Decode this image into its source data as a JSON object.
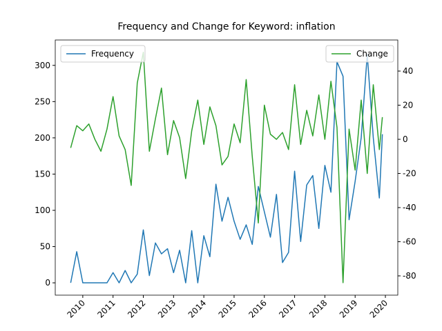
{
  "chart_data": {
    "type": "line",
    "title": "Frequency and Change for Keyword: inflation",
    "x": [
      2009.6,
      2009.8,
      2010.0,
      2010.2,
      2010.4,
      2010.6,
      2010.8,
      2011.0,
      2011.2,
      2011.4,
      2011.6,
      2011.8,
      2012.0,
      2012.2,
      2012.4,
      2012.6,
      2012.8,
      2013.0,
      2013.2,
      2013.4,
      2013.6,
      2013.8,
      2014.0,
      2014.2,
      2014.4,
      2014.6,
      2014.8,
      2015.0,
      2015.2,
      2015.4,
      2015.6,
      2015.8,
      2016.0,
      2016.2,
      2016.4,
      2016.6,
      2016.8,
      2017.0,
      2017.2,
      2017.4,
      2017.6,
      2017.8,
      2018.0,
      2018.2,
      2018.4,
      2018.6,
      2018.8,
      2019.0,
      2019.2,
      2019.4,
      2019.6,
      2019.8,
      2019.9
    ],
    "series": [
      {
        "name": "Frequency",
        "color": "#1f77b4",
        "values": [
          0,
          43,
          0,
          0,
          0,
          0,
          0,
          14,
          0,
          17,
          0,
          12,
          73,
          10,
          55,
          40,
          47,
          14,
          45,
          0,
          72,
          0,
          65,
          36,
          136,
          85,
          118,
          85,
          60,
          80,
          53,
          133,
          98,
          63,
          122,
          28,
          42,
          154,
          57,
          135,
          148,
          75,
          162,
          125,
          305,
          285,
          87,
          140,
          200,
          315,
          200,
          117,
          205
        ]
      },
      {
        "name": "Change",
        "color": "#2ca02c",
        "axis": "y2",
        "values": [
          -5,
          8,
          5,
          9,
          0,
          -7,
          6,
          25,
          2,
          -6,
          -27,
          33,
          51,
          -7,
          12,
          30,
          -9,
          11,
          1,
          -23,
          5,
          23,
          -3,
          19,
          8,
          -15,
          -10,
          9,
          -2,
          35,
          -10,
          -49,
          20,
          3,
          0,
          4,
          -6,
          32,
          -3,
          17,
          2,
          26,
          0,
          34,
          7,
          -84,
          6,
          -18,
          23,
          -20,
          32,
          -6,
          13
        ]
      }
    ],
    "xlim": [
      2009.09,
      2020.41
    ],
    "xticks": [
      2010,
      2011,
      2012,
      2013,
      2014,
      2015,
      2016,
      2017,
      2018,
      2019,
      2020
    ],
    "ylim": [
      -17,
      335
    ],
    "yticks": [
      0,
      50,
      100,
      150,
      200,
      250,
      300
    ],
    "y2lim": [
      -91.3,
      58.2
    ],
    "y2ticks": [
      -80,
      -60,
      -40,
      -20,
      0,
      20,
      40
    ],
    "legend": [
      "upper left",
      "upper right"
    ]
  }
}
